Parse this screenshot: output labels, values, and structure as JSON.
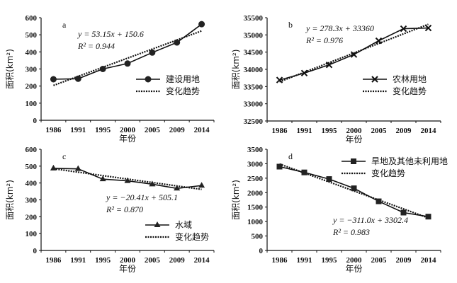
{
  "chart_data": [
    {
      "type": "line",
      "panel_label": "a",
      "categories": [
        "1986",
        "1991",
        "1995",
        "2000",
        "2005",
        "2009",
        "2014"
      ],
      "ylabel": "面积(km²)",
      "xlabel": "年份",
      "ylim": [
        0,
        600
      ],
      "yticks": [
        "0",
        "100",
        "200",
        "300",
        "400",
        "500",
        "600"
      ],
      "series": [
        {
          "name": "建设用地",
          "marker": "circle",
          "values": [
            240,
            243,
            300,
            332,
            396,
            455,
            562
          ]
        }
      ],
      "trend": {
        "name": "变化趋势",
        "slope": 53.15,
        "intercept": 150.6,
        "equation": "y = 53.15x + 150.6",
        "r2": "R² = 0.944"
      },
      "legend": "center-right"
    },
    {
      "type": "line",
      "panel_label": "b",
      "categories": [
        "1986",
        "1991",
        "1995",
        "2000",
        "2005",
        "2009",
        "2014"
      ],
      "ylabel": "面积(km²)",
      "xlabel": "年份",
      "ylim": [
        32500,
        35500
      ],
      "yticks": [
        "32500",
        "33000",
        "33500",
        "34000",
        "34500",
        "35000",
        "35500"
      ],
      "series": [
        {
          "name": "农林用地",
          "marker": "x",
          "values": [
            33690,
            33890,
            34130,
            34430,
            34830,
            35180,
            35200
          ]
        }
      ],
      "trend": {
        "name": "变化趋势",
        "slope": 278.3,
        "intercept": 33360,
        "equation": "y = 278.3x + 33360",
        "r2": "R² = 0.976"
      },
      "legend": "center-right"
    },
    {
      "type": "line",
      "panel_label": "c",
      "categories": [
        "1986",
        "1991",
        "1995",
        "2000",
        "2005",
        "2009",
        "2014"
      ],
      "ylabel": "面积(km²)",
      "xlabel": "年份",
      "ylim": [
        0,
        600
      ],
      "yticks": [
        "0",
        "100",
        "200",
        "300",
        "400",
        "500",
        "600"
      ],
      "series": [
        {
          "name": "水域",
          "marker": "triangle",
          "values": [
            487,
            484,
            423,
            413,
            393,
            368,
            385
          ]
        }
      ],
      "trend": {
        "name": "变化趋势",
        "slope": -20.41,
        "intercept": 505.1,
        "equation": "y = −20.41x + 505.1",
        "r2": "R² = 0.870"
      },
      "legend": "bottom-right"
    },
    {
      "type": "line",
      "panel_label": "d",
      "categories": [
        "1986",
        "1991",
        "1995",
        "2000",
        "2005",
        "2009",
        "2014"
      ],
      "ylabel": "面积(km²)",
      "xlabel": "年份",
      "ylim": [
        0,
        3500
      ],
      "yticks": [
        "0",
        "500",
        "1000",
        "1500",
        "2000",
        "2500",
        "3000",
        "3500"
      ],
      "series": [
        {
          "name": "旱地及其他未利用地",
          "marker": "square",
          "values": [
            2900,
            2700,
            2470,
            2150,
            1700,
            1310,
            1170
          ]
        }
      ],
      "trend": {
        "name": "变化趋势",
        "slope": -311.0,
        "intercept": 3302.4,
        "equation": "y = −311.0x + 3302.4",
        "r2": "R² = 0.983"
      },
      "legend": "top-right"
    }
  ]
}
